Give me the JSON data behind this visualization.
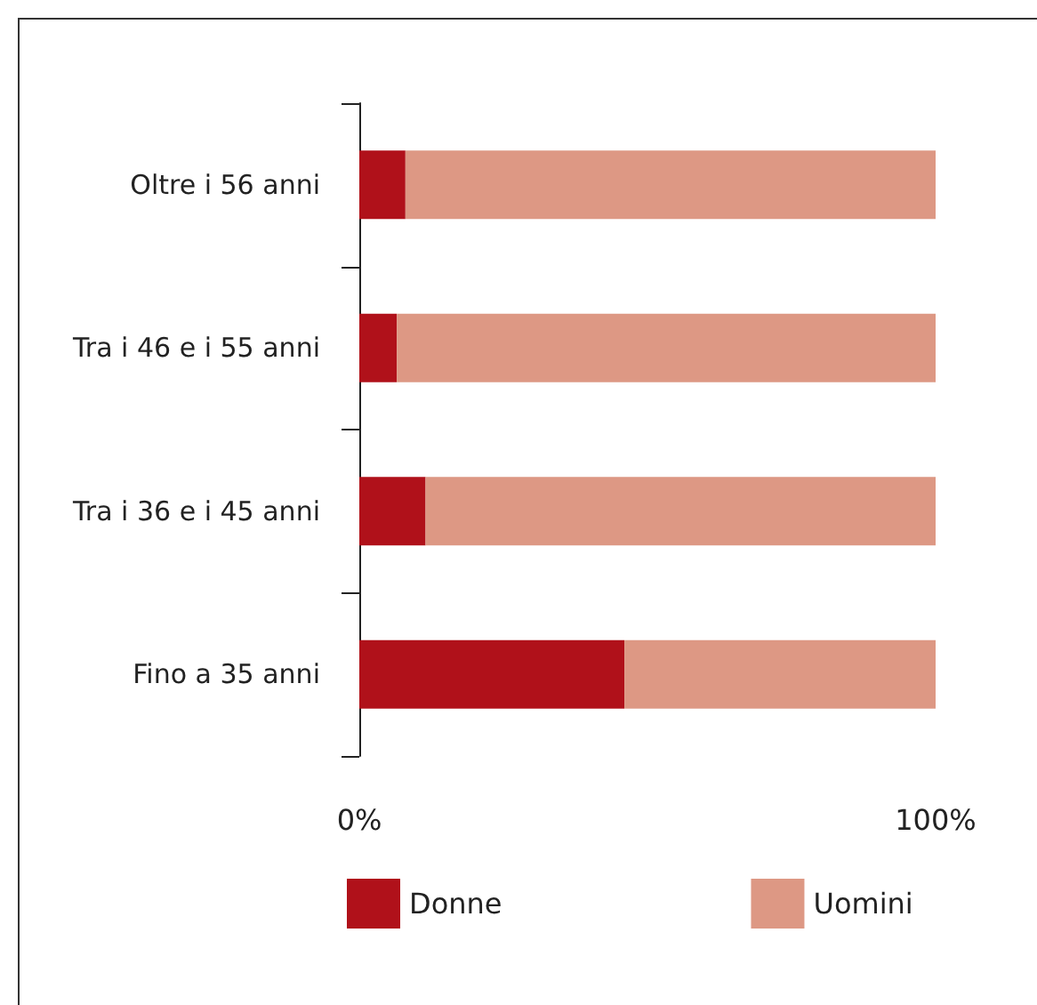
{
  "chart_data": {
    "type": "bar",
    "orientation": "horizontal",
    "stacked": true,
    "categories": [
      "Oltre i 56 anni",
      "Tra i 46 e i 55 anni",
      "Tra i 36 e i 45 anni",
      "Fino a 35 anni"
    ],
    "series": [
      {
        "name": "Donne",
        "color": "#b0111a",
        "values": [
          8,
          6.5,
          11.5,
          46
        ]
      },
      {
        "name": "Uomini",
        "color": "#dd9884",
        "values": [
          92,
          93.5,
          88.5,
          54
        ]
      }
    ],
    "xlim": [
      0,
      100
    ],
    "xticks": [
      {
        "value": 0,
        "label": "0%"
      },
      {
        "value": 100,
        "label": "100%"
      }
    ],
    "grid": false,
    "legend": "bottom"
  }
}
